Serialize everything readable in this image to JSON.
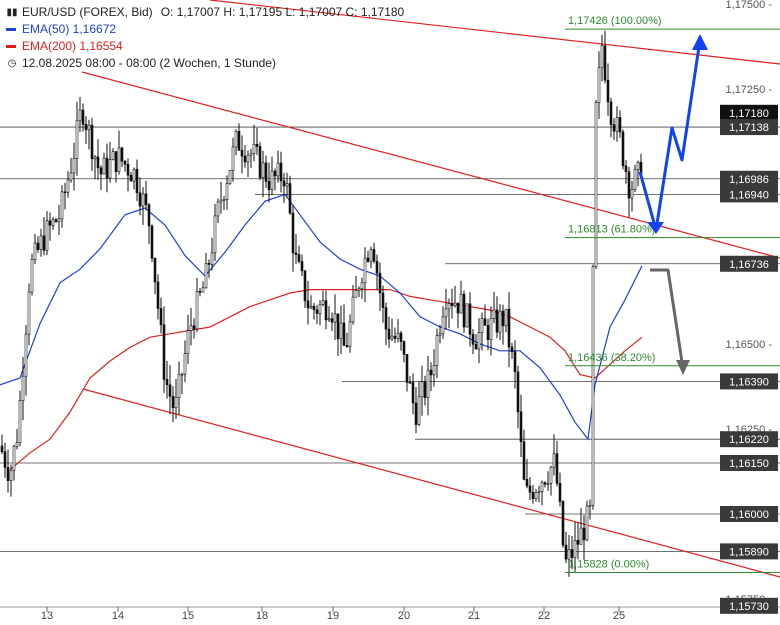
{
  "legend": {
    "symbol": "EUR/USD (FOREX, Bid)",
    "ohlc": "O: 1,17007  H: 1,17195  L: 1,17007  C: 1,17180",
    "ema50": "EMA(50)  1,16672",
    "ema200": "EMA(200)  1,16554",
    "period": "12.08.2025 08:00 - 08:00   (2 Wochen, 1 Stunde)",
    "icons": [
      "candles-icon",
      "clock-icon"
    ]
  },
  "colors": {
    "ema50": "#1f3fe0",
    "ema200": "#e02020",
    "trend": "#e02020",
    "fib": "#2e8b2e",
    "level": "#444444",
    "badge_bg": "#3a3a3a",
    "badge_current": "#111111",
    "arrow_up": "#1144ee",
    "arrow_down": "#666666"
  },
  "chart_data": {
    "type": "candlestick",
    "title": "EUR/USD (FOREX, Bid)",
    "y_ticks": [
      "1,17500",
      "1,17250",
      "1,16500",
      "1,16250",
      "1,15750"
    ],
    "x_ticks": [
      "13",
      "14",
      "15",
      "18",
      "19",
      "20",
      "21",
      "22",
      "25"
    ],
    "ylim": [
      1.1572,
      1.1755
    ],
    "price_labels": [
      "1,17180",
      "1,17138",
      "1,16986",
      "1,16940",
      "1,16736",
      "1,16390",
      "1,16220",
      "1,16150",
      "1,16000",
      "1,15890",
      "1,15730"
    ],
    "fib_levels": [
      {
        "label": "1,17426 (100.00%)",
        "price": 1.17426
      },
      {
        "label": "1,16813 (61.80%)",
        "price": 1.16813
      },
      {
        "label": "1,16436 (38.20%)",
        "price": 1.16436
      },
      {
        "label": "1,15828 (0.00%)",
        "price": 1.15828
      }
    ],
    "current_price": "1,17180",
    "ema": [
      {
        "name": "EMA(50)",
        "value": 1.16672
      },
      {
        "name": "EMA(200)",
        "value": 1.16554
      }
    ]
  }
}
